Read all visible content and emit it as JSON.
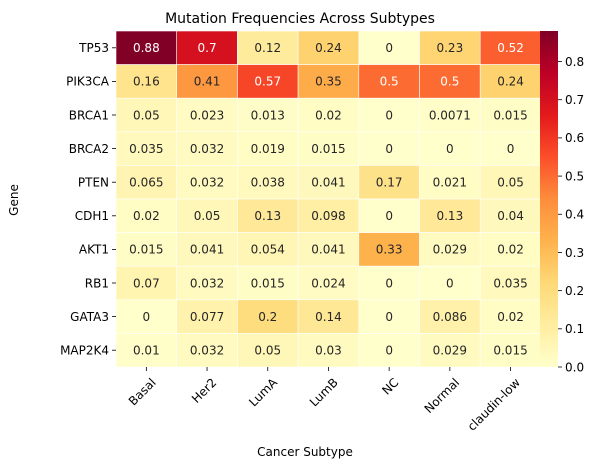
{
  "chart_data": {
    "type": "heatmap",
    "title": "Mutation Frequencies Across Subtypes",
    "xlabel": "Cancer Subtype",
    "ylabel": "Gene",
    "x_categories": [
      "Basal",
      "Her2",
      "LumA",
      "LumB",
      "NC",
      "Normal",
      "claudin-low"
    ],
    "y_categories": [
      "TP53",
      "PIK3CA",
      "BRCA1",
      "BRCA2",
      "PTEN",
      "CDH1",
      "AKT1",
      "RB1",
      "GATA3",
      "MAP2K4"
    ],
    "values": [
      [
        0.88,
        0.7,
        0.12,
        0.24,
        0,
        0.23,
        0.52
      ],
      [
        0.16,
        0.41,
        0.57,
        0.35,
        0.5,
        0.5,
        0.24
      ],
      [
        0.05,
        0.023,
        0.013,
        0.02,
        0,
        0.0071,
        0.015
      ],
      [
        0.035,
        0.032,
        0.019,
        0.015,
        0,
        0,
        0
      ],
      [
        0.065,
        0.032,
        0.038,
        0.041,
        0.17,
        0.021,
        0.05
      ],
      [
        0.02,
        0.05,
        0.13,
        0.098,
        0,
        0.13,
        0.04
      ],
      [
        0.015,
        0.041,
        0.054,
        0.041,
        0.33,
        0.029,
        0.02
      ],
      [
        0.07,
        0.032,
        0.015,
        0.024,
        0,
        0,
        0.035
      ],
      [
        0,
        0.077,
        0.2,
        0.14,
        0,
        0.086,
        0.02
      ],
      [
        0.01,
        0.032,
        0.05,
        0.03,
        0,
        0.029,
        0.015
      ]
    ],
    "value_labels": [
      [
        "0.88",
        "0.7",
        "0.12",
        "0.24",
        "0",
        "0.23",
        "0.52"
      ],
      [
        "0.16",
        "0.41",
        "0.57",
        "0.35",
        "0.5",
        "0.5",
        "0.24"
      ],
      [
        "0.05",
        "0.023",
        "0.013",
        "0.02",
        "0",
        "0.0071",
        "0.015"
      ],
      [
        "0.035",
        "0.032",
        "0.019",
        "0.015",
        "0",
        "0",
        "0"
      ],
      [
        "0.065",
        "0.032",
        "0.038",
        "0.041",
        "0.17",
        "0.021",
        "0.05"
      ],
      [
        "0.02",
        "0.05",
        "0.13",
        "0.098",
        "0",
        "0.13",
        "0.04"
      ],
      [
        "0.015",
        "0.041",
        "0.054",
        "0.041",
        "0.33",
        "0.029",
        "0.02"
      ],
      [
        "0.07",
        "0.032",
        "0.015",
        "0.024",
        "0",
        "0",
        "0.035"
      ],
      [
        "0",
        "0.077",
        "0.2",
        "0.14",
        "0",
        "0.086",
        "0.02"
      ],
      [
        "0.01",
        "0.032",
        "0.05",
        "0.03",
        "0",
        "0.029",
        "0.015"
      ]
    ],
    "colormap": "YlOrRd",
    "colorbar": {
      "vmin": 0,
      "vmax": 0.88,
      "ticks": [
        0.0,
        0.1,
        0.2,
        0.3,
        0.4,
        0.5,
        0.6,
        0.7,
        0.8
      ],
      "tick_labels": [
        "0.0",
        "0.1",
        "0.2",
        "0.3",
        "0.4",
        "0.5",
        "0.6",
        "0.7",
        "0.8"
      ]
    },
    "grid": false,
    "cell_border_color": "#ffffff"
  },
  "colors": {
    "ylorrd": [
      "#ffffcc",
      "#ffeda0",
      "#fed976",
      "#feb24c",
      "#fd8d3c",
      "#fc4e2a",
      "#e31a1c",
      "#bd0026",
      "#800026"
    ],
    "text_dark": "#262626",
    "text_light": "#ffffff"
  }
}
